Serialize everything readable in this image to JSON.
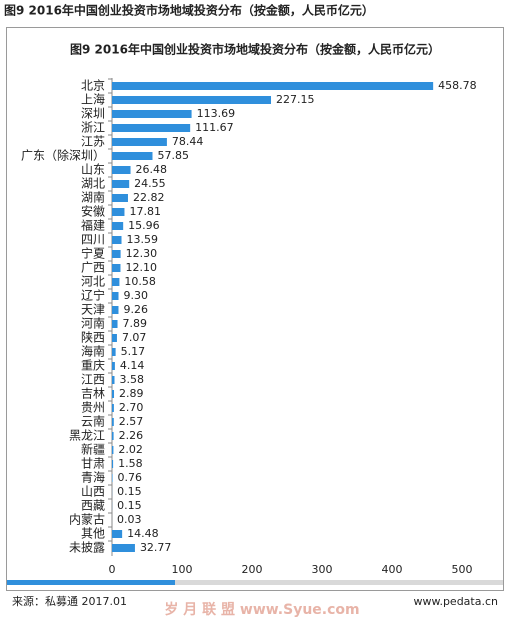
{
  "heading": "图9 2016年中国创业投资市场地域投资分布（按金额，人民币亿元）",
  "chart_data": {
    "type": "bar",
    "orientation": "horizontal",
    "title": "图9 2016年中国创业投资市场地域投资分布（按金额，人民币亿元）",
    "categories": [
      "北京",
      "上海",
      "深圳",
      "浙江",
      "江苏",
      "广东（除深圳）",
      "山东",
      "湖北",
      "湖南",
      "安徽",
      "福建",
      "四川",
      "宁夏",
      "广西",
      "河北",
      "辽宁",
      "天津",
      "河南",
      "陕西",
      "海南",
      "重庆",
      "江西",
      "吉林",
      "贵州",
      "云南",
      "黑龙江",
      "新疆",
      "甘肃",
      "青海",
      "山西",
      "西藏",
      "内蒙古",
      "其他",
      "未披露"
    ],
    "values": [
      458.78,
      227.15,
      113.69,
      111.67,
      78.44,
      57.85,
      26.48,
      24.55,
      22.82,
      17.81,
      15.96,
      13.59,
      12.3,
      12.1,
      10.58,
      9.3,
      9.26,
      7.89,
      7.07,
      5.17,
      4.14,
      3.58,
      2.89,
      2.7,
      2.57,
      2.26,
      2.02,
      1.58,
      0.76,
      0.15,
      0.15,
      0.03,
      14.48,
      32.77
    ],
    "value_labels": [
      "458.78",
      "227.15",
      "113.69",
      "111.67",
      "78.44",
      "57.85",
      "26.48",
      "24.55",
      "22.82",
      "17.81",
      "15.96",
      "13.59",
      "12.30",
      "12.10",
      "10.58",
      "9.30",
      "9.26",
      "7.89",
      "7.07",
      "5.17",
      "4.14",
      "3.58",
      "2.89",
      "2.70",
      "2.57",
      "2.26",
      "2.02",
      "1.58",
      "0.76",
      "0.15",
      "0.15",
      "0.03",
      "14.48",
      "32.77"
    ],
    "color": "#2f8fdc",
    "xlim": [
      0,
      500
    ],
    "xticks": [
      0,
      100,
      200,
      300,
      400,
      500
    ]
  },
  "footer": {
    "source": "来源：私募通 2017.01",
    "watermark": "岁 月 联 盟  www.Syue.com",
    "website": "www.pedata.cn"
  }
}
